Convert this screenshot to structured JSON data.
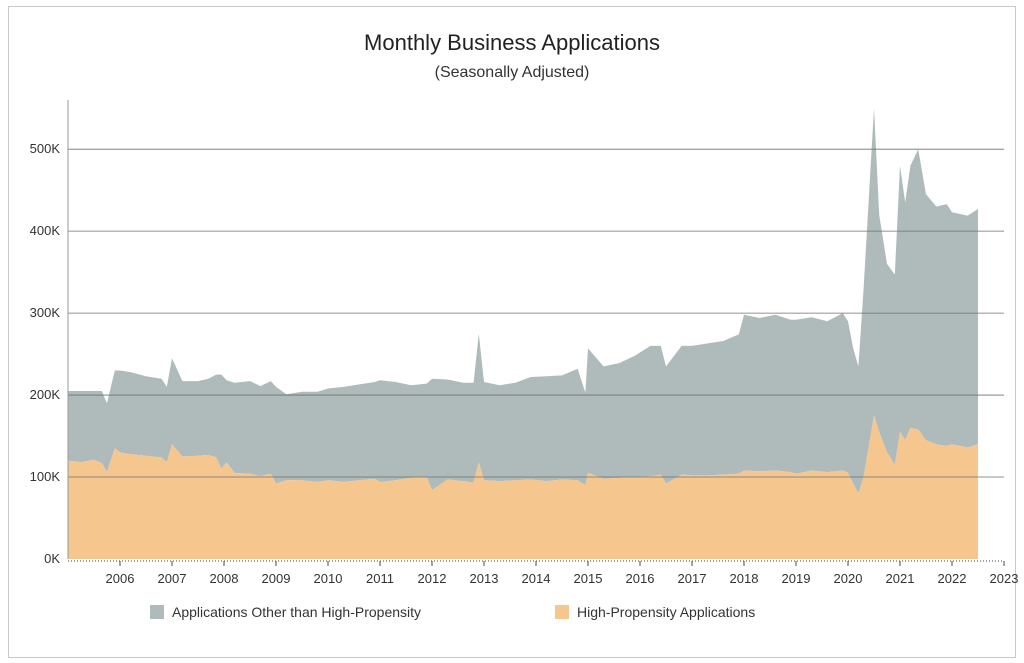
{
  "chart_data": {
    "type": "area",
    "stacked": true,
    "title": "Monthly Business Applications",
    "subtitle": "(Seasonally Adjusted)",
    "xlabel": "",
    "ylabel": "",
    "xlim": [
      2005.0,
      2023.0
    ],
    "ylim": [
      0,
      560000
    ],
    "y_ticks": [
      0,
      100000,
      200000,
      300000,
      400000,
      500000
    ],
    "y_tick_labels": [
      "0K",
      "100K",
      "200K",
      "300K",
      "400K",
      "500K"
    ],
    "x_ticks": [
      2006,
      2007,
      2008,
      2009,
      2010,
      2011,
      2012,
      2013,
      2014,
      2015,
      2016,
      2017,
      2018,
      2019,
      2020,
      2021,
      2022,
      2023
    ],
    "x_tick_labels": [
      "2006",
      "2007",
      "2008",
      "2009",
      "2010",
      "2011",
      "2012",
      "2013",
      "2014",
      "2015",
      "2016",
      "2017",
      "2018",
      "2019",
      "2020",
      "2021",
      "2022",
      "2023"
    ],
    "grid": "horizontal",
    "legend_position": "bottom",
    "series": [
      {
        "name": "High-Propensity Applications",
        "color": "#f5c78f",
        "x": [
          2005.0,
          2005.25,
          2005.5,
          2005.65,
          2005.75,
          2005.9,
          2006.0,
          2006.2,
          2006.5,
          2006.8,
          2006.9,
          2007.0,
          2007.2,
          2007.5,
          2007.7,
          2007.85,
          2007.95,
          2008.05,
          2008.2,
          2008.5,
          2008.7,
          2008.9,
          2009.0,
          2009.2,
          2009.5,
          2009.8,
          2010.0,
          2010.3,
          2010.6,
          2010.9,
          2011.0,
          2011.3,
          2011.6,
          2011.9,
          2012.0,
          2012.3,
          2012.6,
          2012.8,
          2012.9,
          2013.0,
          2013.3,
          2013.6,
          2013.9,
          2014.2,
          2014.5,
          2014.8,
          2014.95,
          2015.0,
          2015.3,
          2015.6,
          2015.9,
          2016.2,
          2016.4,
          2016.5,
          2016.8,
          2017.0,
          2017.3,
          2017.6,
          2017.9,
          2018.0,
          2018.3,
          2018.6,
          2018.9,
          2019.0,
          2019.3,
          2019.6,
          2019.9,
          2020.0,
          2020.1,
          2020.2,
          2020.3,
          2020.5,
          2020.6,
          2020.75,
          2020.9,
          2021.0,
          2021.1,
          2021.2,
          2021.35,
          2021.5,
          2021.7,
          2021.9,
          2022.0,
          2022.3,
          2022.5
        ],
        "values": [
          120000,
          118000,
          121000,
          117000,
          106000,
          135000,
          130000,
          128000,
          126000,
          124000,
          118000,
          140000,
          125000,
          126000,
          127000,
          124000,
          110000,
          118000,
          105000,
          104000,
          101000,
          104000,
          92000,
          96000,
          96000,
          94000,
          96000,
          94000,
          96000,
          98000,
          94000,
          96000,
          99000,
          100000,
          84000,
          97000,
          95000,
          93000,
          118000,
          96000,
          95000,
          96000,
          97000,
          95000,
          97000,
          96000,
          90000,
          105000,
          98000,
          99000,
          100000,
          101000,
          103000,
          92000,
          103000,
          102000,
          102000,
          103000,
          104000,
          108000,
          107000,
          108000,
          106000,
          104000,
          108000,
          106000,
          108000,
          105000,
          92000,
          80000,
          100000,
          175000,
          155000,
          130000,
          115000,
          155000,
          145000,
          160000,
          158000,
          145000,
          140000,
          138000,
          140000,
          136000,
          140000
        ]
      },
      {
        "name": "Applications Other than High-Propensity",
        "color": "#afbbba",
        "x": [
          2005.0,
          2005.25,
          2005.5,
          2005.65,
          2005.75,
          2005.9,
          2006.0,
          2006.2,
          2006.5,
          2006.8,
          2006.9,
          2007.0,
          2007.2,
          2007.5,
          2007.7,
          2007.85,
          2007.95,
          2008.05,
          2008.2,
          2008.5,
          2008.7,
          2008.9,
          2009.0,
          2009.2,
          2009.5,
          2009.8,
          2010.0,
          2010.3,
          2010.6,
          2010.9,
          2011.0,
          2011.3,
          2011.6,
          2011.9,
          2012.0,
          2012.3,
          2012.6,
          2012.8,
          2012.9,
          2013.0,
          2013.3,
          2013.6,
          2013.9,
          2014.2,
          2014.5,
          2014.8,
          2014.95,
          2015.0,
          2015.3,
          2015.6,
          2015.9,
          2016.2,
          2016.4,
          2016.5,
          2016.8,
          2017.0,
          2017.3,
          2017.6,
          2017.9,
          2018.0,
          2018.3,
          2018.6,
          2018.9,
          2019.0,
          2019.3,
          2019.6,
          2019.9,
          2020.0,
          2020.1,
          2020.2,
          2020.3,
          2020.5,
          2020.6,
          2020.75,
          2020.9,
          2021.0,
          2021.1,
          2021.2,
          2021.35,
          2021.5,
          2021.7,
          2021.9,
          2022.0,
          2022.3,
          2022.5
        ],
        "values": [
          85000,
          87000,
          84000,
          88000,
          84000,
          95000,
          100000,
          100000,
          97000,
          96000,
          92000,
          105000,
          92000,
          91000,
          93000,
          101000,
          115000,
          100000,
          110000,
          113000,
          110000,
          113000,
          118000,
          105000,
          108000,
          110000,
          112000,
          116000,
          117000,
          118000,
          124000,
          120000,
          113000,
          114000,
          136000,
          122000,
          120000,
          122000,
          157000,
          120000,
          117000,
          119000,
          125000,
          128000,
          127000,
          136000,
          113000,
          152000,
          137000,
          140000,
          148000,
          159000,
          157000,
          143000,
          157000,
          158000,
          161000,
          163000,
          170000,
          190000,
          187000,
          190000,
          186000,
          188000,
          187000,
          184000,
          192000,
          185000,
          165000,
          155000,
          230000,
          375000,
          265000,
          230000,
          232000,
          325000,
          290000,
          320000,
          342000,
          300000,
          290000,
          295000,
          283000,
          283000,
          287000
        ]
      }
    ]
  },
  "legend": [
    {
      "label": "Applications Other than High-Propensity",
      "color": "#afbbba"
    },
    {
      "label": "High-Propensity Applications",
      "color": "#f5c78f"
    }
  ]
}
